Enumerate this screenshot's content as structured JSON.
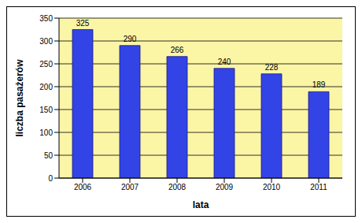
{
  "chart_data": {
    "type": "bar",
    "xlabel": "lata",
    "ylabel": "liczba pasażerów",
    "categories": [
      "2006",
      "2007",
      "2008",
      "2009",
      "2010",
      "2011"
    ],
    "values": [
      325,
      290,
      266,
      240,
      228,
      189
    ],
    "color": "#3344e6",
    "ylim": [
      0,
      350
    ],
    "yticks": [
      0,
      50,
      100,
      150,
      200,
      250,
      300,
      350
    ],
    "grid": true,
    "data_labels": true
  }
}
